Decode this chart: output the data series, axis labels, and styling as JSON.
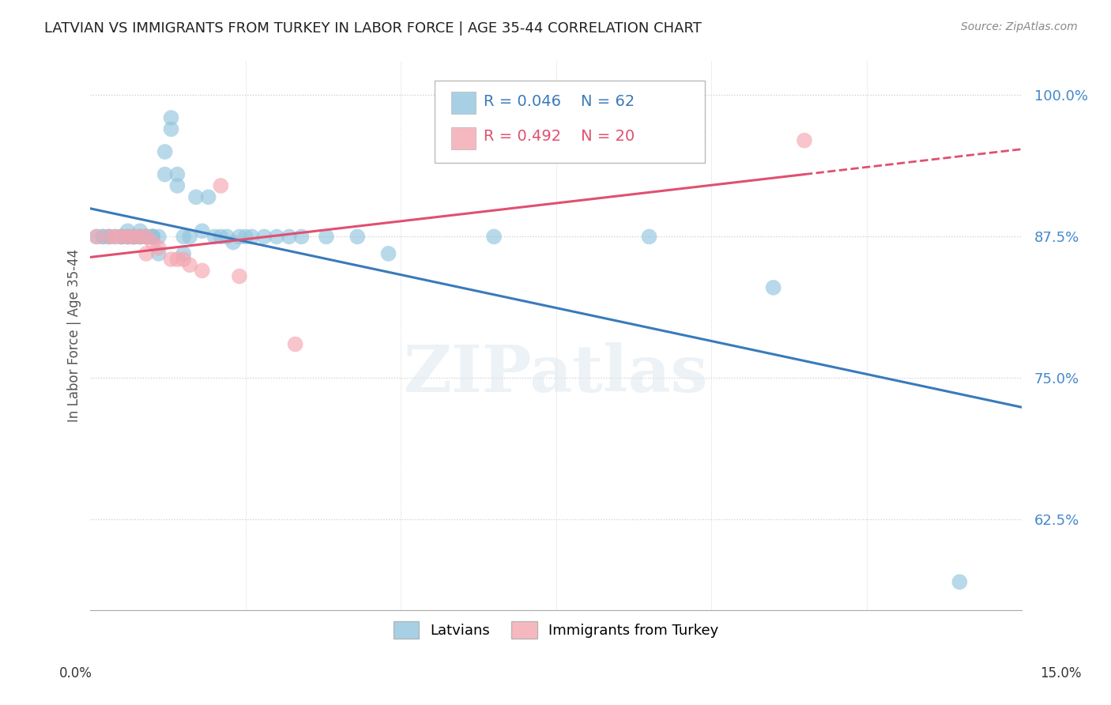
{
  "title": "LATVIAN VS IMMIGRANTS FROM TURKEY IN LABOR FORCE | AGE 35-44 CORRELATION CHART",
  "source": "Source: ZipAtlas.com",
  "ylabel": "In Labor Force | Age 35-44",
  "xlim": [
    0.0,
    0.15
  ],
  "ylim": [
    0.545,
    1.03
  ],
  "latvian_R": 0.046,
  "latvian_N": 62,
  "turkey_R": 0.492,
  "turkey_N": 20,
  "latvian_color": "#92c5de",
  "turkey_color": "#f4a6b0",
  "trend_latvian_color": "#3a7aba",
  "trend_turkey_color": "#e05070",
  "background_color": "#ffffff",
  "legend_latvians": "Latvians",
  "legend_turkey": "Immigrants from Turkey",
  "latvian_x": [
    0.001,
    0.002,
    0.002,
    0.003,
    0.003,
    0.004,
    0.005,
    0.005,
    0.005,
    0.006,
    0.006,
    0.006,
    0.006,
    0.007,
    0.007,
    0.007,
    0.007,
    0.008,
    0.008,
    0.008,
    0.008,
    0.009,
    0.009,
    0.009,
    0.009,
    0.01,
    0.01,
    0.01,
    0.01,
    0.01,
    0.011,
    0.011,
    0.012,
    0.012,
    0.013,
    0.013,
    0.014,
    0.014,
    0.015,
    0.015,
    0.016,
    0.017,
    0.018,
    0.019,
    0.02,
    0.021,
    0.022,
    0.023,
    0.024,
    0.025,
    0.026,
    0.028,
    0.03,
    0.032,
    0.034,
    0.038,
    0.043,
    0.048,
    0.065,
    0.09,
    0.11,
    0.14
  ],
  "latvian_y": [
    0.875,
    0.875,
    0.875,
    0.875,
    0.875,
    0.875,
    0.875,
    0.875,
    0.875,
    0.875,
    0.875,
    0.875,
    0.88,
    0.875,
    0.875,
    0.875,
    0.875,
    0.875,
    0.875,
    0.88,
    0.875,
    0.875,
    0.875,
    0.875,
    0.875,
    0.875,
    0.875,
    0.875,
    0.875,
    0.875,
    0.875,
    0.86,
    0.93,
    0.95,
    0.97,
    0.98,
    0.93,
    0.92,
    0.875,
    0.86,
    0.875,
    0.91,
    0.88,
    0.91,
    0.875,
    0.875,
    0.875,
    0.87,
    0.875,
    0.875,
    0.875,
    0.875,
    0.875,
    0.875,
    0.875,
    0.875,
    0.875,
    0.86,
    0.875,
    0.875,
    0.83,
    0.57
  ],
  "turkey_x": [
    0.001,
    0.003,
    0.004,
    0.005,
    0.006,
    0.007,
    0.008,
    0.009,
    0.009,
    0.01,
    0.011,
    0.013,
    0.014,
    0.015,
    0.016,
    0.018,
    0.021,
    0.024,
    0.033,
    0.115
  ],
  "turkey_y": [
    0.875,
    0.875,
    0.875,
    0.875,
    0.875,
    0.875,
    0.875,
    0.875,
    0.86,
    0.87,
    0.865,
    0.855,
    0.855,
    0.855,
    0.85,
    0.845,
    0.92,
    0.84,
    0.78,
    0.96
  ],
  "ytick_positions": [
    0.625,
    0.75,
    0.875,
    1.0
  ],
  "ytick_labels": [
    "62.5%",
    "75.0%",
    "87.5%",
    "100.0%"
  ],
  "ytick_color": "#4488cc"
}
